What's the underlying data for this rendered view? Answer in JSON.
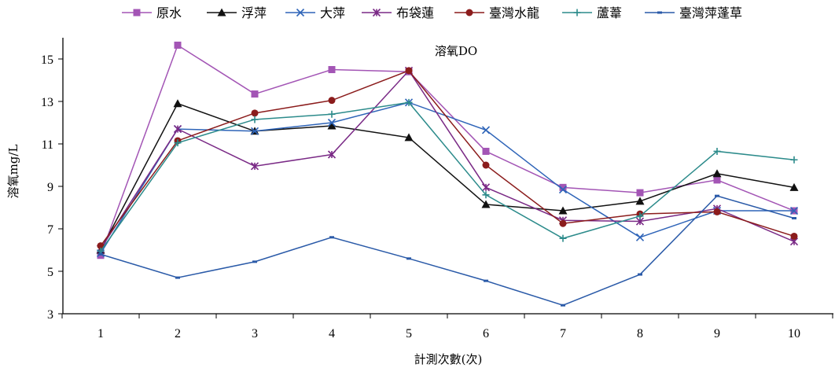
{
  "chart_data": {
    "type": "line",
    "title": "溶氧DO",
    "xlabel": "計測次數(次)",
    "ylabel": "溶氧mg/L",
    "x": [
      1,
      2,
      3,
      4,
      5,
      6,
      7,
      8,
      9,
      10
    ],
    "x_tick_labels": [
      "1",
      "2",
      "3",
      "4",
      "5",
      "6",
      "7",
      "8",
      "9",
      "10"
    ],
    "ylim": [
      3,
      16
    ],
    "y_ticks": [
      3,
      5,
      7,
      9,
      11,
      13,
      15
    ],
    "y_tick_labels": [
      "3",
      "5",
      "7",
      "9",
      "11",
      "13",
      "15"
    ],
    "grid": false,
    "legend_position": "top",
    "series": [
      {
        "name": "原水",
        "color": "#a355b5",
        "marker": "square",
        "values": [
          5.75,
          15.65,
          13.35,
          14.5,
          14.4,
          10.65,
          8.95,
          8.7,
          9.3,
          7.85
        ]
      },
      {
        "name": "浮萍",
        "color": "#111111",
        "marker": "triangle",
        "values": [
          6.0,
          12.9,
          11.6,
          11.85,
          11.3,
          8.15,
          7.85,
          8.3,
          9.6,
          8.95
        ]
      },
      {
        "name": "大萍",
        "color": "#2e64b8",
        "marker": "x",
        "values": [
          5.85,
          11.7,
          11.6,
          12.0,
          12.95,
          11.65,
          8.85,
          6.6,
          7.85,
          7.85
        ]
      },
      {
        "name": "布袋蓮",
        "color": "#7a2a86",
        "marker": "star",
        "values": [
          6.05,
          11.7,
          9.95,
          10.5,
          14.45,
          8.95,
          7.4,
          7.35,
          7.95,
          6.4
        ]
      },
      {
        "name": "臺灣水龍",
        "color": "#8b1c1c",
        "marker": "circle",
        "values": [
          6.2,
          11.15,
          12.45,
          13.05,
          14.45,
          10.0,
          7.25,
          7.7,
          7.8,
          6.65
        ]
      },
      {
        "name": "蘆葦",
        "color": "#2c8b8b",
        "marker": "plus",
        "values": [
          5.95,
          11.05,
          12.15,
          12.4,
          12.95,
          8.6,
          6.55,
          7.6,
          10.65,
          10.25
        ]
      },
      {
        "name": "臺灣萍蓬草",
        "color": "#2a5aa8",
        "marker": "dash",
        "values": [
          5.8,
          4.7,
          5.45,
          6.6,
          5.6,
          4.55,
          3.4,
          4.85,
          8.55,
          7.5
        ]
      }
    ]
  }
}
